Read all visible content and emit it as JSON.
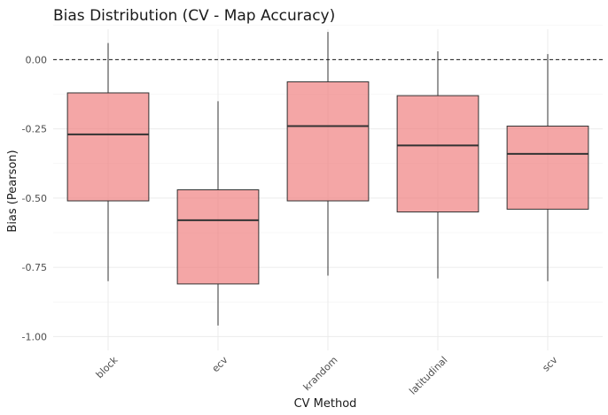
{
  "chart_data": {
    "type": "boxplot",
    "title": "Bias Distribution (CV - Map Accuracy)",
    "xlabel": "CV Method",
    "ylabel": "Bias (Pearson)",
    "ylim": [
      -1.05,
      0.11
    ],
    "yticks": [
      0.0,
      -0.25,
      -0.5,
      -0.75,
      -1.0
    ],
    "ytick_labels": [
      "0.00",
      "-0.25",
      "-0.50",
      "-0.75",
      "-1.00"
    ],
    "yminor": [
      0.125,
      -0.125,
      -0.375,
      -0.625,
      -0.875
    ],
    "reference_line": {
      "y": 0.0,
      "style": "dashed"
    },
    "grid": true,
    "box_color": "#f08080",
    "categories": [
      "block",
      "ecv",
      "krandom",
      "latitudinal",
      "scv"
    ],
    "boxes": [
      {
        "category": "block",
        "whisker_low": -0.8,
        "q1": -0.51,
        "median": -0.27,
        "q3": -0.12,
        "whisker_high": 0.06
      },
      {
        "category": "ecv",
        "whisker_low": -0.96,
        "q1": -0.81,
        "median": -0.58,
        "q3": -0.47,
        "whisker_high": -0.15
      },
      {
        "category": "krandom",
        "whisker_low": -0.78,
        "q1": -0.51,
        "median": -0.24,
        "q3": -0.08,
        "whisker_high": 0.1
      },
      {
        "category": "latitudinal",
        "whisker_low": -0.79,
        "q1": -0.55,
        "median": -0.31,
        "q3": -0.13,
        "whisker_high": 0.03
      },
      {
        "category": "scv",
        "whisker_low": -0.8,
        "q1": -0.54,
        "median": -0.34,
        "q3": -0.24,
        "whisker_high": 0.02
      }
    ]
  }
}
